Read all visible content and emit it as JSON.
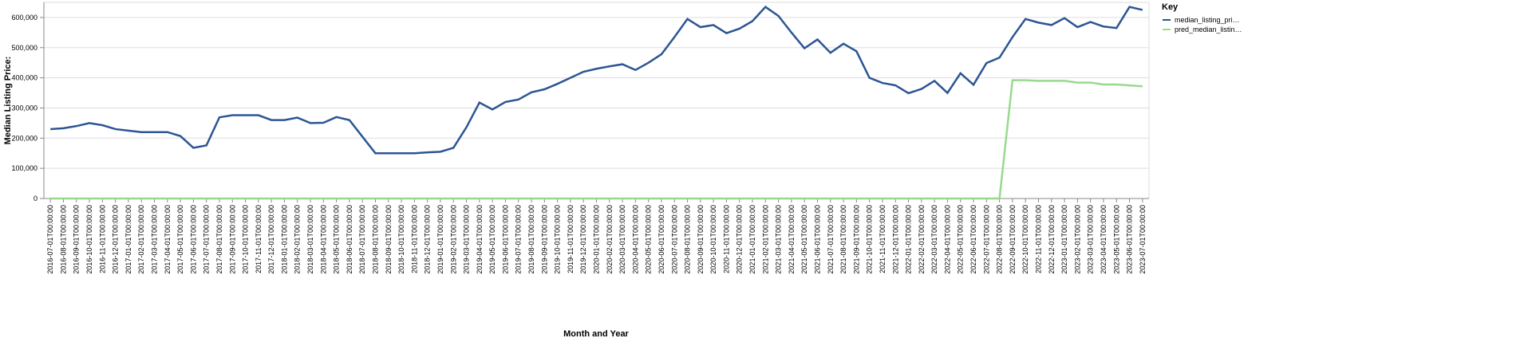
{
  "chart_data": {
    "type": "line",
    "x_label": "Month and Year",
    "y_label": "Median Listing Price:",
    "legend_title": "Key",
    "legend_position": "top-right",
    "grid": true,
    "categories": [
      "2016-07-01T00:00:00",
      "2016-08-01T00:00:00",
      "2016-09-01T00:00:00",
      "2016-10-01T00:00:00",
      "2016-11-01T00:00:00",
      "2016-12-01T00:00:00",
      "2017-01-01T00:00:00",
      "2017-02-01T00:00:00",
      "2017-03-01T00:00:00",
      "2017-04-01T00:00:00",
      "2017-05-01T00:00:00",
      "2017-06-01T00:00:00",
      "2017-07-01T00:00:00",
      "2017-08-01T00:00:00",
      "2017-09-01T00:00:00",
      "2017-10-01T00:00:00",
      "2017-11-01T00:00:00",
      "2017-12-01T00:00:00",
      "2018-01-01T00:00:00",
      "2018-02-01T00:00:00",
      "2018-03-01T00:00:00",
      "2018-04-01T00:00:00",
      "2018-05-01T00:00:00",
      "2018-06-01T00:00:00",
      "2018-07-01T00:00:00",
      "2018-08-01T00:00:00",
      "2018-09-01T00:00:00",
      "2018-10-01T00:00:00",
      "2018-11-01T00:00:00",
      "2018-12-01T00:00:00",
      "2019-01-01T00:00:00",
      "2019-02-01T00:00:00",
      "2019-03-01T00:00:00",
      "2019-04-01T00:00:00",
      "2019-05-01T00:00:00",
      "2019-06-01T00:00:00",
      "2019-07-01T00:00:00",
      "2019-08-01T00:00:00",
      "2019-09-01T00:00:00",
      "2019-10-01T00:00:00",
      "2019-11-01T00:00:00",
      "2019-12-01T00:00:00",
      "2020-01-01T00:00:00",
      "2020-02-01T00:00:00",
      "2020-03-01T00:00:00",
      "2020-04-01T00:00:00",
      "2020-05-01T00:00:00",
      "2020-06-01T00:00:00",
      "2020-07-01T00:00:00",
      "2020-08-01T00:00:00",
      "2020-09-01T00:00:00",
      "2020-10-01T00:00:00",
      "2020-11-01T00:00:00",
      "2020-12-01T00:00:00",
      "2021-01-01T00:00:00",
      "2021-02-01T00:00:00",
      "2021-03-01T00:00:00",
      "2021-04-01T00:00:00",
      "2021-05-01T00:00:00",
      "2021-06-01T00:00:00",
      "2021-07-01T00:00:00",
      "2021-08-01T00:00:00",
      "2021-09-01T00:00:00",
      "2021-10-01T00:00:00",
      "2021-11-01T00:00:00",
      "2021-12-01T00:00:00",
      "2022-01-01T00:00:00",
      "2022-02-01T00:00:00",
      "2022-03-01T00:00:00",
      "2022-04-01T00:00:00",
      "2022-05-01T00:00:00",
      "2022-06-01T00:00:00",
      "2022-07-01T00:00:00",
      "2022-08-01T00:00:00",
      "2022-09-01T00:00:00",
      "2022-10-01T00:00:00",
      "2022-11-01T00:00:00",
      "2022-12-01T00:00:00",
      "2023-01-01T00:00:00",
      "2023-02-01T00:00:00",
      "2023-03-01T00:00:00",
      "2023-04-01T00:00:00",
      "2023-05-01T00:00:00",
      "2023-06-01T00:00:00",
      "2023-07-01T00:00:00"
    ],
    "series": [
      {
        "name": "median_listing_pri…",
        "color": "#2c5594",
        "values": [
          230000,
          233000,
          240000,
          250000,
          243000,
          230000,
          225000,
          220000,
          220000,
          220000,
          207000,
          168000,
          176000,
          269000,
          276000,
          276000,
          276000,
          260000,
          260000,
          268000,
          250000,
          251000,
          270000,
          260000,
          205000,
          150000,
          150000,
          150000,
          150000,
          153000,
          155000,
          168000,
          236000,
          318000,
          295000,
          320000,
          328000,
          352000,
          362000,
          380000,
          400000,
          420000,
          430000,
          438000,
          445000,
          426000,
          450000,
          478000,
          535000,
          595000,
          568000,
          575000,
          548000,
          563000,
          588000,
          635000,
          605000,
          550000,
          498000,
          527000,
          483000,
          513000,
          488000,
          400000,
          383000,
          375000,
          349000,
          363000,
          390000,
          350000,
          415000,
          377000,
          449000,
          467000,
          535000,
          595000,
          583000,
          575000,
          598000,
          568000,
          585000,
          570000,
          565000,
          635000,
          625000
        ]
      },
      {
        "name": "pred_median_listin…",
        "color": "#98d98e",
        "values": [
          0,
          0,
          0,
          0,
          0,
          0,
          0,
          0,
          0,
          0,
          0,
          0,
          0,
          0,
          0,
          0,
          0,
          0,
          0,
          0,
          0,
          0,
          0,
          0,
          0,
          0,
          0,
          0,
          0,
          0,
          0,
          0,
          0,
          0,
          0,
          0,
          0,
          0,
          0,
          0,
          0,
          0,
          0,
          0,
          0,
          0,
          0,
          0,
          0,
          0,
          0,
          0,
          0,
          0,
          0,
          0,
          0,
          0,
          0,
          0,
          0,
          0,
          0,
          0,
          0,
          0,
          0,
          0,
          0,
          0,
          0,
          0,
          0,
          0,
          392000,
          392000,
          390000,
          390000,
          390000,
          384000,
          384000,
          378000,
          378000,
          375000,
          372000
        ]
      }
    ],
    "ylim": [
      0,
      650000
    ],
    "yticks": [
      0,
      {
        "value": 100000,
        "label": "100,000"
      },
      {
        "value": 200000,
        "label": "200,000"
      },
      {
        "value": 300000,
        "label": "300,000"
      },
      {
        "value": 400000,
        "label": "400,000"
      },
      {
        "value": 500000,
        "label": "500,000"
      },
      {
        "value": 600000,
        "label": "600,000"
      }
    ]
  }
}
